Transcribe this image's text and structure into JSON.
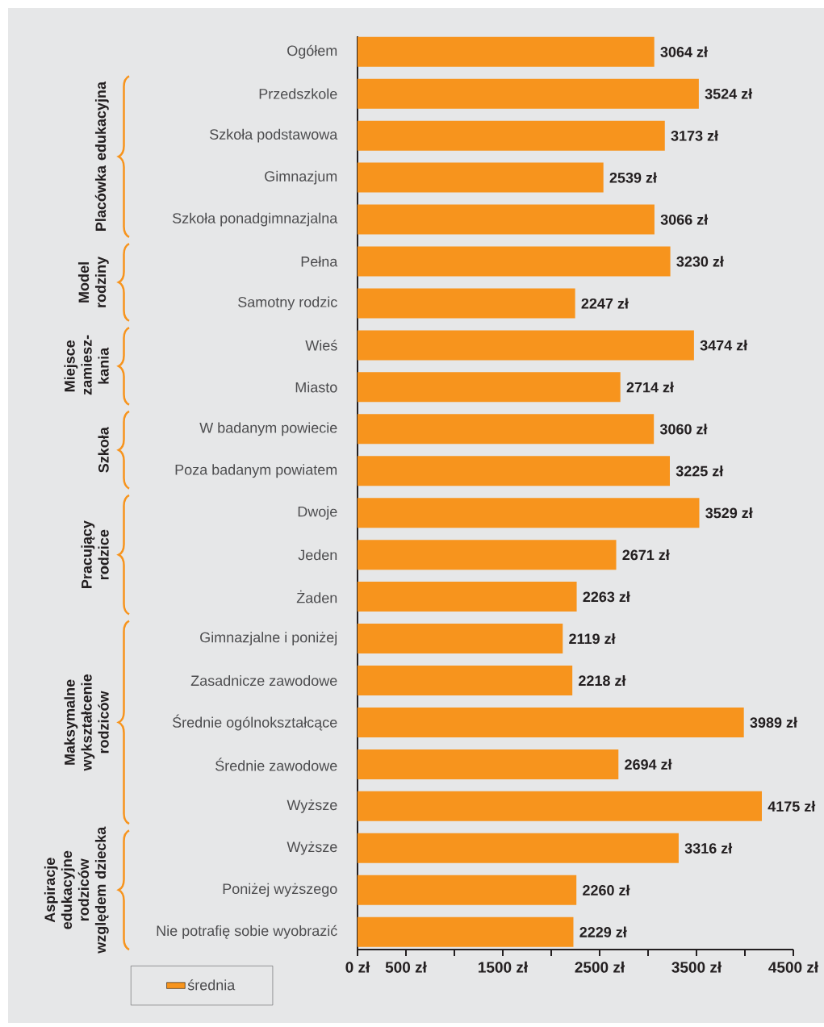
{
  "chart_data": {
    "type": "bar",
    "orientation": "horizontal",
    "categories": [
      "Ogółem",
      "Przedszkole",
      "Szkoła podstawowa",
      "Gimnazjum",
      "Szkoła ponadgimnazjalna",
      "Pełna",
      "Samotny rodzic",
      "Wieś",
      "Miasto",
      "W badanym powiecie",
      "Poza badanym powiatem",
      "Dwoje",
      "Jeden",
      "Żaden",
      "Gimnazjalne i poniżej",
      "Zasadnicze zawodowe",
      "Średnie ogólnokształcące",
      "Średnie zawodowe",
      "Wyższe",
      "Wyższe",
      "Poniżej wyższego",
      "Nie potrafię sobie wyobrazić"
    ],
    "series": [
      {
        "name": "średnia",
        "color": "#f7941d",
        "values": [
          3064,
          3524,
          3173,
          2539,
          3066,
          3230,
          2247,
          3474,
          2714,
          3060,
          3225,
          3529,
          2671,
          2263,
          2119,
          2218,
          3989,
          2694,
          4175,
          3316,
          2260,
          2229
        ],
        "value_labels": [
          "3064 zł",
          "3524 zł",
          "3173 zł",
          "2539 zł",
          "3066 zł",
          "3230 zł",
          "2247 zł",
          "3474 zł",
          "2714 zł",
          "3060 zł",
          "3225 zł",
          "3529 zł",
          "2671 zł",
          "2263 zł",
          "2119 zł",
          "2218 zł",
          "3989 zł",
          "2694 zł",
          "4175 zł",
          "3316 zł",
          "2260 zł",
          "2229 zł"
        ]
      }
    ],
    "xlim": [
      0,
      4500
    ],
    "xticks": [
      {
        "value": 0,
        "label": "0 zł"
      },
      {
        "value": 500,
        "label": "500 zł"
      },
      {
        "value": 1000,
        "label": null
      },
      {
        "value": 1500,
        "label": "1500 zł"
      },
      {
        "value": 2000,
        "label": null
      },
      {
        "value": 2500,
        "label": "2500 zł"
      },
      {
        "value": 3000,
        "label": null
      },
      {
        "value": 3500,
        "label": "3500 zł"
      },
      {
        "value": 4000,
        "label": null
      },
      {
        "value": 4500,
        "label": "4500 zł"
      }
    ],
    "legend": "bottom left",
    "annotations": [
      "Placówka edukacyjna",
      "Model rodziny",
      "Miejsce zamiesz-kania",
      "Szkoła",
      "Pracujący rodzice",
      "Maksymalne wykształcenie rodziców",
      "Aspiracje edukacyjne rodziców względem dziecka"
    ]
  }
}
